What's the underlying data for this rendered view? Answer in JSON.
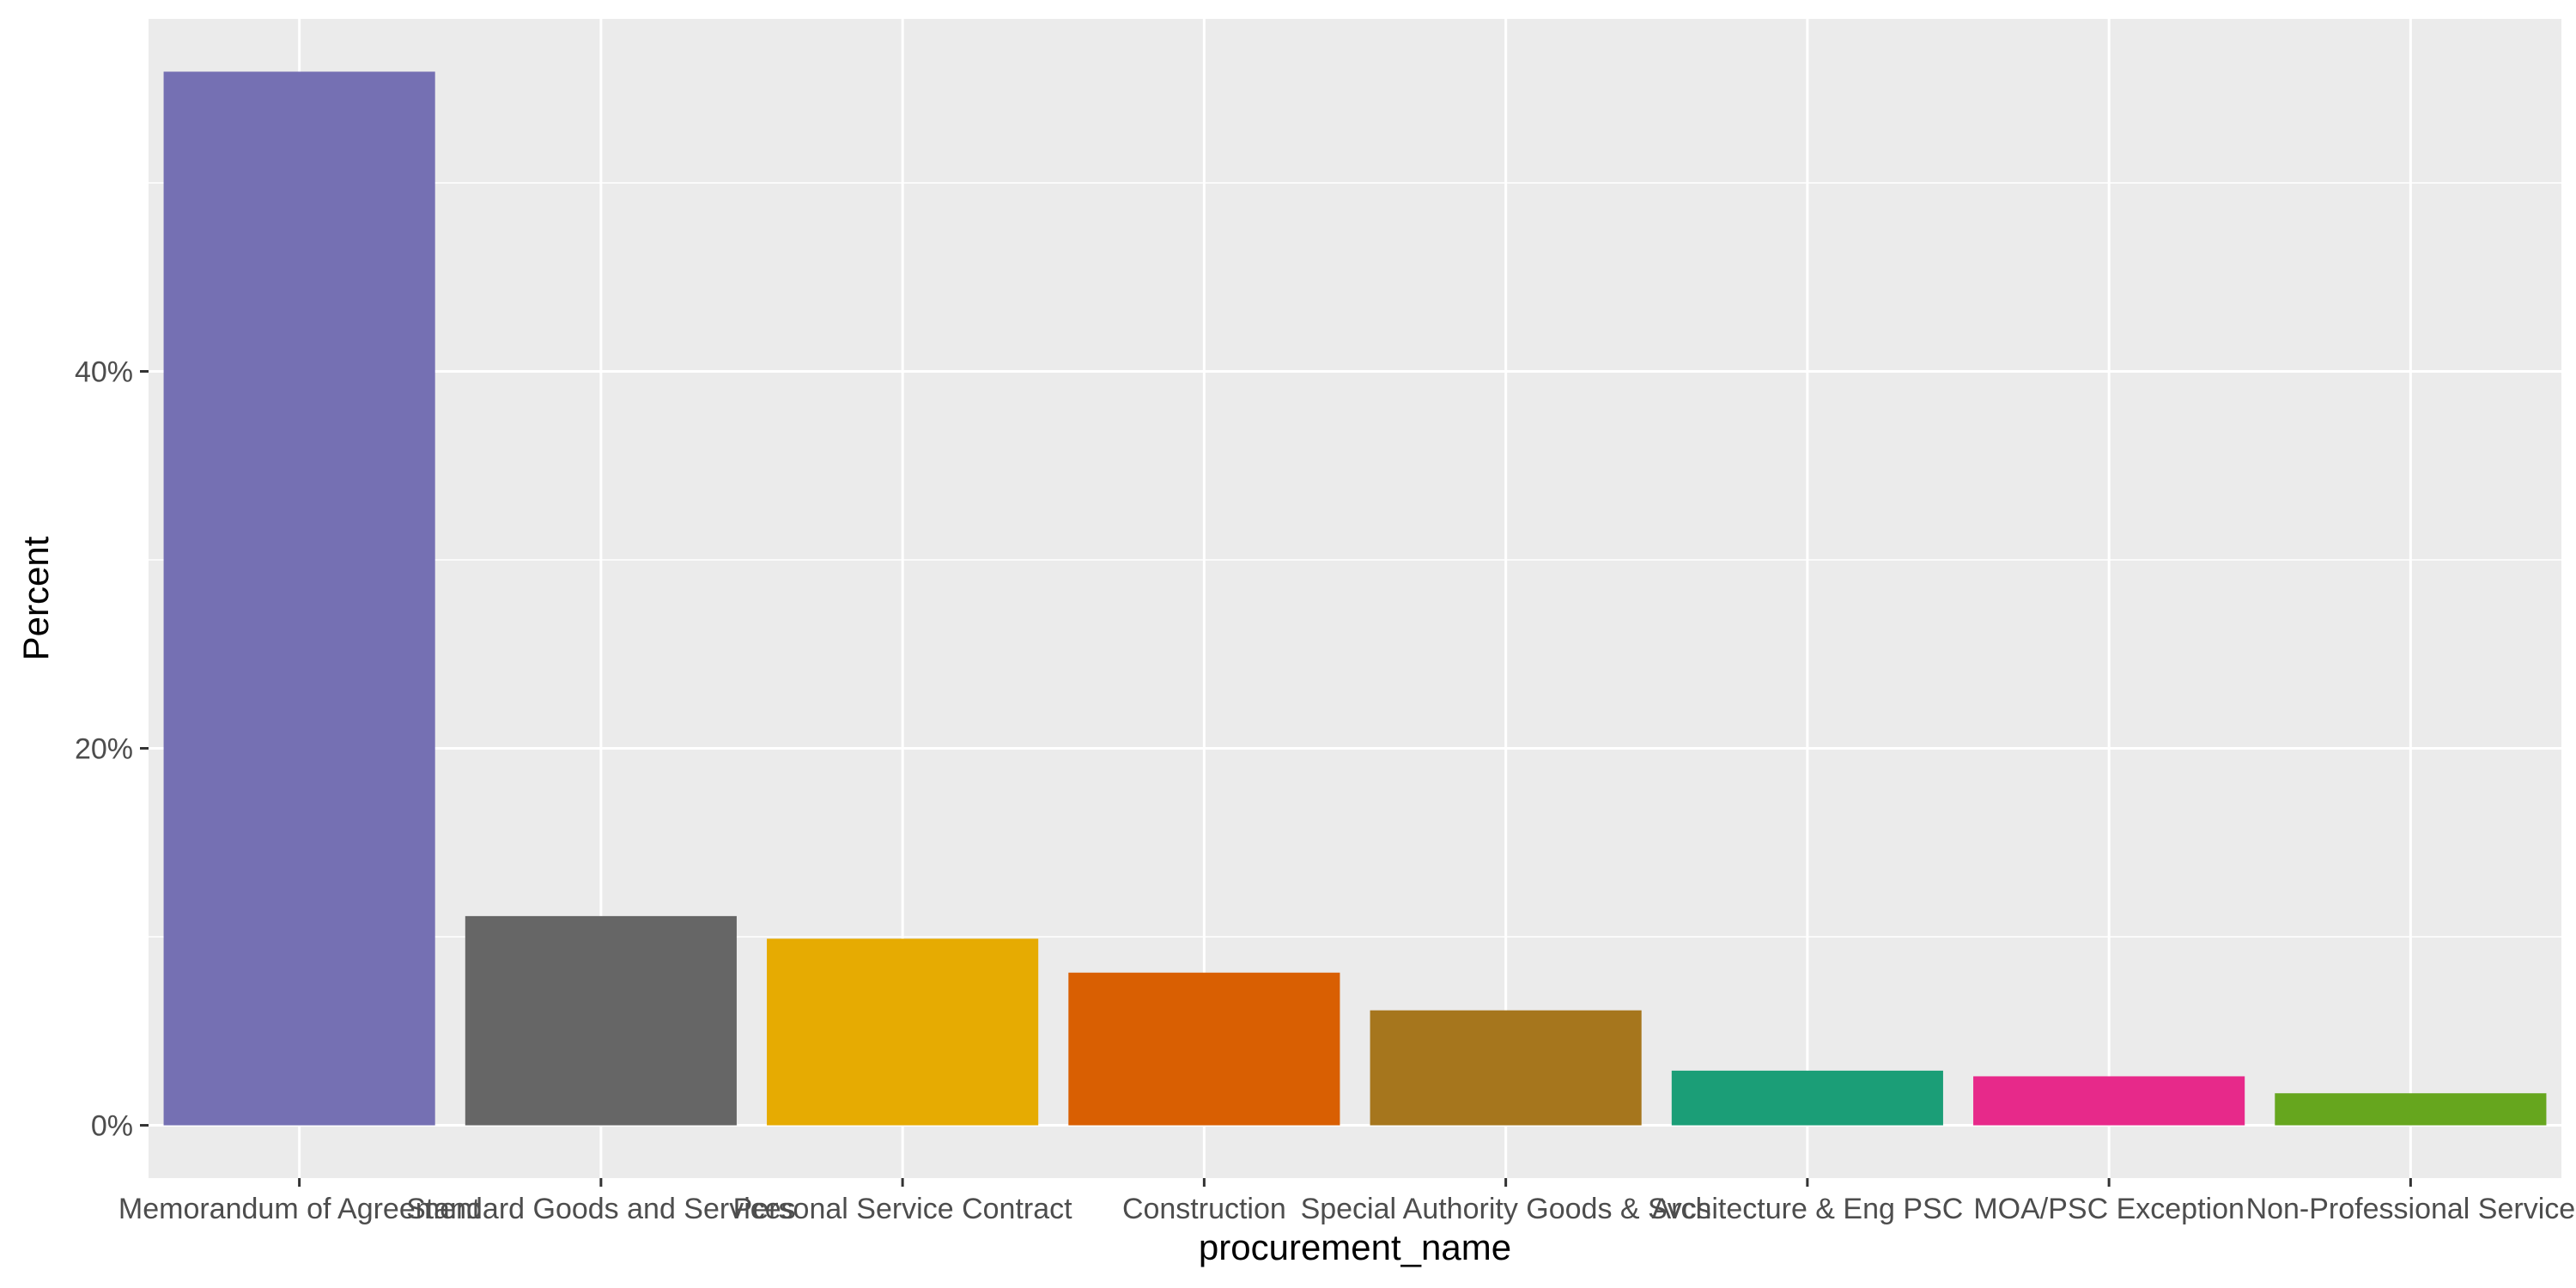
{
  "chart_data": {
    "type": "bar",
    "title": "",
    "xlabel": "procurement_name",
    "ylabel": "Percent",
    "categories": [
      "Memorandum of Agreement",
      "Standard Goods and Services",
      "Personal Service Contract",
      "Construction",
      "Special Authority Goods & Svcs",
      "Architecture & Eng PSC",
      "MOA/PSC Exception",
      "Non-Professional Service"
    ],
    "values": [
      55.9,
      11.1,
      9.9,
      8.1,
      6.1,
      2.9,
      2.6,
      1.7
    ],
    "colors": [
      "#7570B3",
      "#666666",
      "#E6AB02",
      "#D95F02",
      "#A6761D",
      "#1B9E77",
      "#E7298A",
      "#66A61E"
    ],
    "ylim": [
      -2.8,
      58.7
    ],
    "yticks": [
      0,
      20,
      40
    ],
    "ytick_labels": [
      "0%",
      "20%",
      "40%"
    ],
    "grid": true,
    "legend": "none",
    "panel_background": "#EBEBEB",
    "grid_color": "#FFFFFF"
  }
}
